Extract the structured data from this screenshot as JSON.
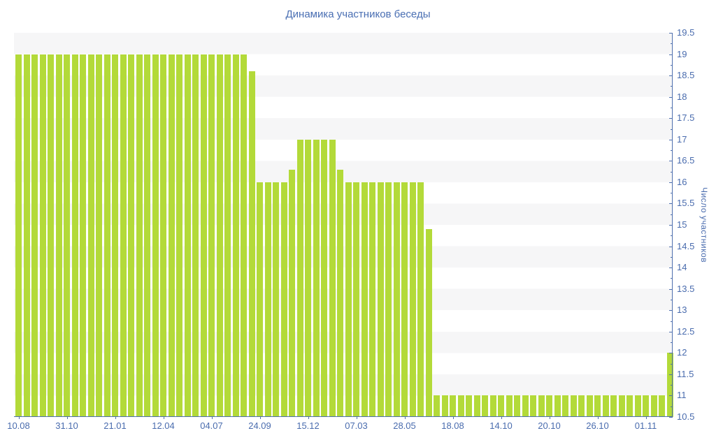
{
  "title": "Динамика участников беседы",
  "colors": {
    "bar": "#b3da39",
    "axis_line": "#4e6fae",
    "tick_text": "#4a6cae",
    "title_text": "#4a6fb3",
    "stripe_gray": "#f6f6f7",
    "stripe_white": "#ffffff",
    "background": "#ffffff"
  },
  "chart_data": {
    "type": "bar",
    "title": "Динамика участников беседы",
    "xlabel": "",
    "ylabel": "Число участников",
    "ylim": [
      10.5,
      19.5
    ],
    "y_major_tick_step": 0.5,
    "y_minor_tick_step": 0.25,
    "grid": "alternating horizontal stripes per 0.5 unit, gray band directly under each whole+half gridline pair starting at top (19.0–19.5 gray)",
    "legend": "none",
    "y_axis_side": "right",
    "bar_count": 82,
    "values": [
      19,
      19,
      19,
      19,
      19,
      19,
      19,
      19,
      19,
      19,
      19,
      19,
      19,
      19,
      19,
      19,
      19,
      19,
      19,
      19,
      19,
      19,
      19,
      19,
      19,
      19,
      19,
      19,
      19,
      18.6,
      16,
      16,
      16,
      16,
      16.3,
      17,
      17,
      17,
      17,
      17,
      16.3,
      16,
      16,
      16,
      16,
      16,
      16,
      16,
      16,
      16,
      16,
      14.9,
      11,
      11,
      11,
      11,
      11,
      11,
      11,
      11,
      11,
      11,
      11,
      11,
      11,
      11,
      11,
      11,
      11,
      11,
      11,
      11,
      11,
      11,
      11,
      11,
      11,
      11,
      11,
      11,
      11,
      12
    ],
    "x_tick_labels": [
      "10.08",
      "31.10",
      "21.01",
      "12.04",
      "04.07",
      "24.09",
      "15.12",
      "07.03",
      "28.05",
      "18.08",
      "14.10",
      "20.10",
      "26.10",
      "01.11"
    ],
    "x_tick_bar_indices": [
      0,
      6,
      12,
      18,
      24,
      30,
      36,
      42,
      48,
      54,
      60,
      66,
      72,
      78
    ],
    "y_tick_labels": [
      "19.5",
      "19",
      "18.5",
      "18",
      "17.5",
      "17",
      "16.5",
      "16",
      "15.5",
      "15",
      "14.5",
      "14",
      "13.5",
      "13",
      "12.5",
      "12",
      "11.5",
      "11",
      "10.5"
    ]
  }
}
